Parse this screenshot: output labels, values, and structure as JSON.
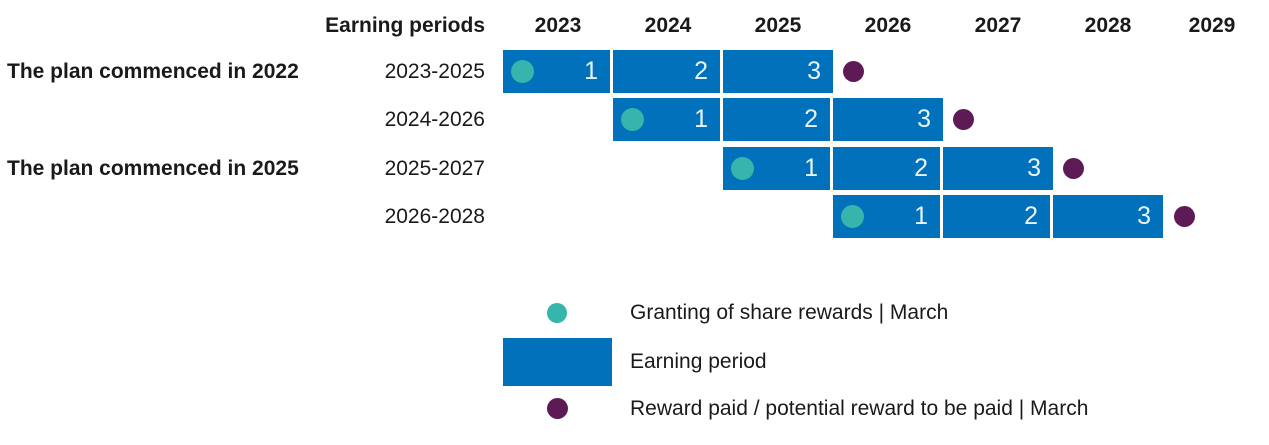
{
  "chart_data": {
    "type": "gantt",
    "columns_label": "Earning periods",
    "years": [
      "2023",
      "2024",
      "2025",
      "2026",
      "2027",
      "2028",
      "2029"
    ],
    "group_labels": [
      {
        "text": "The plan commenced in 2022",
        "applies_to_rows": [
          0,
          1
        ]
      },
      {
        "text": "The plan commenced in 2025",
        "applies_to_rows": [
          2,
          3
        ]
      }
    ],
    "rows": [
      {
        "period": "2023-2025",
        "start_year": 2023,
        "end_year": 2025,
        "segments": [
          "1",
          "2",
          "3"
        ],
        "grant_marker": "March 2023",
        "reward_marker": "March 2026"
      },
      {
        "period": "2024-2026",
        "start_year": 2024,
        "end_year": 2026,
        "segments": [
          "1",
          "2",
          "3"
        ],
        "grant_marker": "March 2024",
        "reward_marker": "March 2027"
      },
      {
        "period": "2025-2027",
        "start_year": 2025,
        "end_year": 2027,
        "segments": [
          "1",
          "2",
          "3"
        ],
        "grant_marker": "March 2025",
        "reward_marker": "March 2028"
      },
      {
        "period": "2026-2028",
        "start_year": 2026,
        "end_year": 2028,
        "segments": [
          "1",
          "2",
          "3"
        ],
        "grant_marker": "March 2026",
        "reward_marker": "March 2029"
      }
    ],
    "legend": [
      {
        "symbol": "grant-dot",
        "color": "#36B5AC",
        "label": "Granting of share rewards | March"
      },
      {
        "symbol": "earning-period-bar",
        "color": "#0071BA",
        "label": "Earning period"
      },
      {
        "symbol": "reward-dot",
        "color": "#5E1A55",
        "label": "Reward paid / potential reward to be paid | March"
      }
    ],
    "colors": {
      "bar": "#0071BA",
      "grant_dot": "#36B5AC",
      "reward_dot": "#5E1A55",
      "bar_number_text": "#E8F4FB",
      "text": "#1A1A1A",
      "background": "#FFFFFF"
    }
  }
}
